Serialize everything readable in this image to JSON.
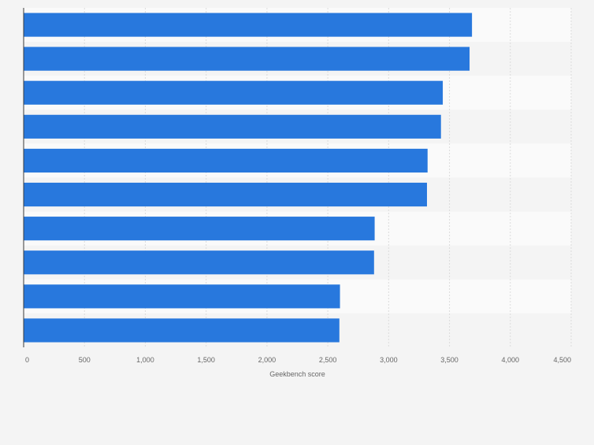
{
  "colors": {
    "bar": "#2878dd",
    "band_light": "#fafafa",
    "band_dark": "#f4f4f4",
    "grid": "#dcdcdc",
    "axis": "#3a3a3a",
    "tick_text": "#666666"
  },
  "chart_data": {
    "type": "bar",
    "orientation": "horizontal",
    "title": "",
    "xlabel": "Geekbench score",
    "ylabel": "",
    "xlim": [
      0,
      4500
    ],
    "xticks": [
      0,
      500,
      1000,
      1500,
      2000,
      2500,
      3000,
      3500,
      4000,
      4500
    ],
    "xtick_labels": [
      "0",
      "500",
      "1,000",
      "1,500",
      "2,000",
      "2,500",
      "3,000",
      "3,500",
      "4,000",
      "4,500"
    ],
    "categories": [
      "",
      "",
      "",
      "",
      "",
      "",
      "",
      "",
      "",
      ""
    ],
    "values": [
      3685,
      3665,
      3445,
      3430,
      3320,
      3315,
      2885,
      2880,
      2600,
      2595
    ],
    "grid": true,
    "legend": "none"
  }
}
